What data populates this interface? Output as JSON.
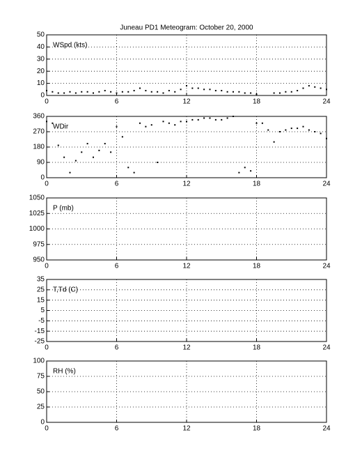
{
  "chart_data": [
    {
      "type": "scatter",
      "title": "Juneau PD1 Meteogram:    October 20, 2000",
      "label": "WSpd (kts)",
      "xlim": [
        0,
        24
      ],
      "xticks": [
        0,
        6,
        12,
        18,
        24
      ],
      "ylim": [
        0,
        50
      ],
      "yticks": [
        0,
        10,
        20,
        30,
        40,
        50
      ],
      "grid": true,
      "x": [
        0,
        0.5,
        1,
        1.5,
        2,
        2.5,
        3,
        3.5,
        4,
        4.5,
        5,
        5.5,
        6,
        6.5,
        7,
        7.5,
        8,
        8.5,
        9,
        9.5,
        10,
        10.5,
        11,
        11.5,
        12,
        12.5,
        13,
        13.5,
        14,
        14.5,
        15,
        15.5,
        16,
        16.5,
        17,
        17.5,
        18,
        18.5,
        19,
        19.5,
        20,
        20.5,
        21,
        21.5,
        22,
        22.5,
        23,
        23.5,
        24
      ],
      "series": [
        {
          "name": "WSpd",
          "color": "#000000",
          "values": [
            4,
            3,
            2,
            2,
            3,
            2,
            3,
            3,
            2,
            3,
            4,
            3,
            2,
            3,
            3,
            4,
            6,
            4,
            3,
            3,
            2,
            4,
            3,
            5,
            8,
            6,
            6,
            5,
            5,
            4,
            4,
            3,
            3,
            3,
            2,
            2,
            1,
            null,
            null,
            2,
            2,
            3,
            3,
            4,
            6,
            8,
            7,
            6,
            5
          ]
        }
      ]
    },
    {
      "type": "scatter",
      "label": "WDir",
      "xlim": [
        0,
        24
      ],
      "xticks": [
        0,
        6,
        12,
        18,
        24
      ],
      "ylim": [
        0,
        360
      ],
      "yticks": [
        0,
        90,
        180,
        270,
        360
      ],
      "grid": true,
      "x": [
        0,
        0.5,
        1,
        1.5,
        2,
        2.5,
        3,
        3.5,
        4,
        4.5,
        5,
        5.5,
        6,
        6.5,
        7,
        7.5,
        8,
        8.5,
        9,
        9.5,
        10,
        10.5,
        11,
        11.5,
        12,
        12.5,
        13,
        13.5,
        14,
        14.5,
        15,
        15.5,
        16,
        16.5,
        17,
        17.5,
        18,
        18.5,
        19,
        19.5,
        20,
        20.5,
        21,
        21.5,
        22,
        22.5,
        23,
        23.5,
        24
      ],
      "series": [
        {
          "name": "WDir",
          "color": "#000000",
          "values": [
            330,
            320,
            190,
            120,
            30,
            100,
            150,
            200,
            120,
            160,
            200,
            150,
            300,
            240,
            60,
            30,
            320,
            300,
            310,
            90,
            330,
            320,
            310,
            330,
            330,
            340,
            340,
            350,
            350,
            340,
            340,
            350,
            360,
            30,
            60,
            40,
            320,
            320,
            280,
            210,
            270,
            280,
            290,
            290,
            300,
            280,
            270,
            260,
            230
          ]
        }
      ]
    },
    {
      "type": "scatter",
      "label": "P (mb)",
      "xlim": [
        0,
        24
      ],
      "xticks": [
        0,
        6,
        12,
        18,
        24
      ],
      "ylim": [
        950,
        1050
      ],
      "yticks": [
        950,
        975,
        1000,
        1025,
        1050
      ],
      "grid": true
    },
    {
      "type": "scatter",
      "label": "T,Td (C)",
      "xlim": [
        0,
        24
      ],
      "xticks": [
        0,
        6,
        12,
        18,
        24
      ],
      "ylim": [
        -25,
        35
      ],
      "yticks": [
        -25,
        -15,
        -5,
        5,
        15,
        25,
        35
      ],
      "grid": true
    },
    {
      "type": "scatter",
      "label": "RH (%)",
      "xlim": [
        0,
        24
      ],
      "xticks": [
        0,
        6,
        12,
        18,
        24
      ],
      "ylim": [
        0,
        100
      ],
      "yticks": [
        0,
        25,
        50,
        75,
        100
      ],
      "grid": true
    }
  ]
}
